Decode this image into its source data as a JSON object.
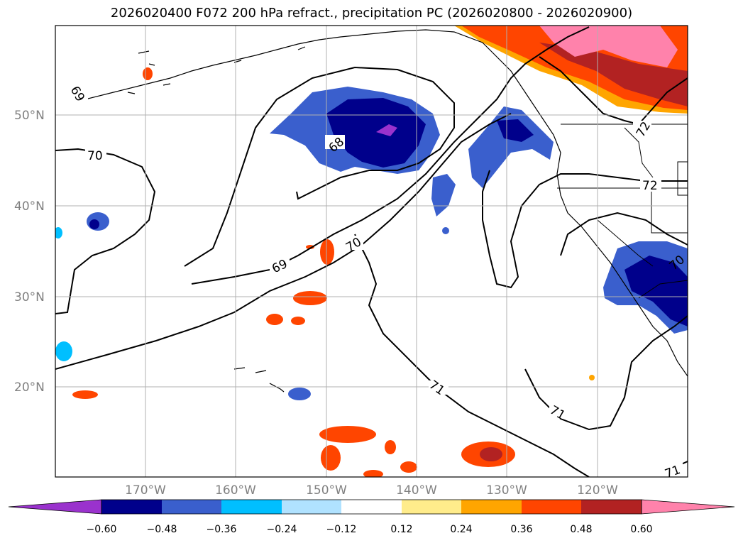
{
  "title": "2026020400 F072 200 hPa refract., precipitation PC (2026020800 - 2026020900)",
  "map": {
    "lon_range": [
      -180,
      -110
    ],
    "lat_range": [
      10,
      60
    ],
    "lat_labels": [
      "50°N",
      "40°N",
      "30°N",
      "20°N"
    ],
    "lon_labels": [
      "170°W",
      "160°W",
      "150°W",
      "140°W",
      "130°W",
      "120°W"
    ],
    "contour_labels": [
      "70",
      "69",
      "68",
      "69",
      "70",
      "71",
      "71",
      "71",
      "72",
      "72",
      "70"
    ]
  },
  "colorbar": {
    "ticks": [
      "−0.60",
      "−0.48",
      "−0.36",
      "−0.24",
      "−0.12",
      "0.12",
      "0.24",
      "0.36",
      "0.48",
      "0.60"
    ],
    "colors": [
      "#9a32cd",
      "#00008b",
      "#3a5fcd",
      "#00bfff",
      "#b0e2ff",
      "#ffffff",
      "#ffec8b",
      "#ffa500",
      "#ff4500",
      "#b22222",
      "#ff82ab"
    ]
  }
}
